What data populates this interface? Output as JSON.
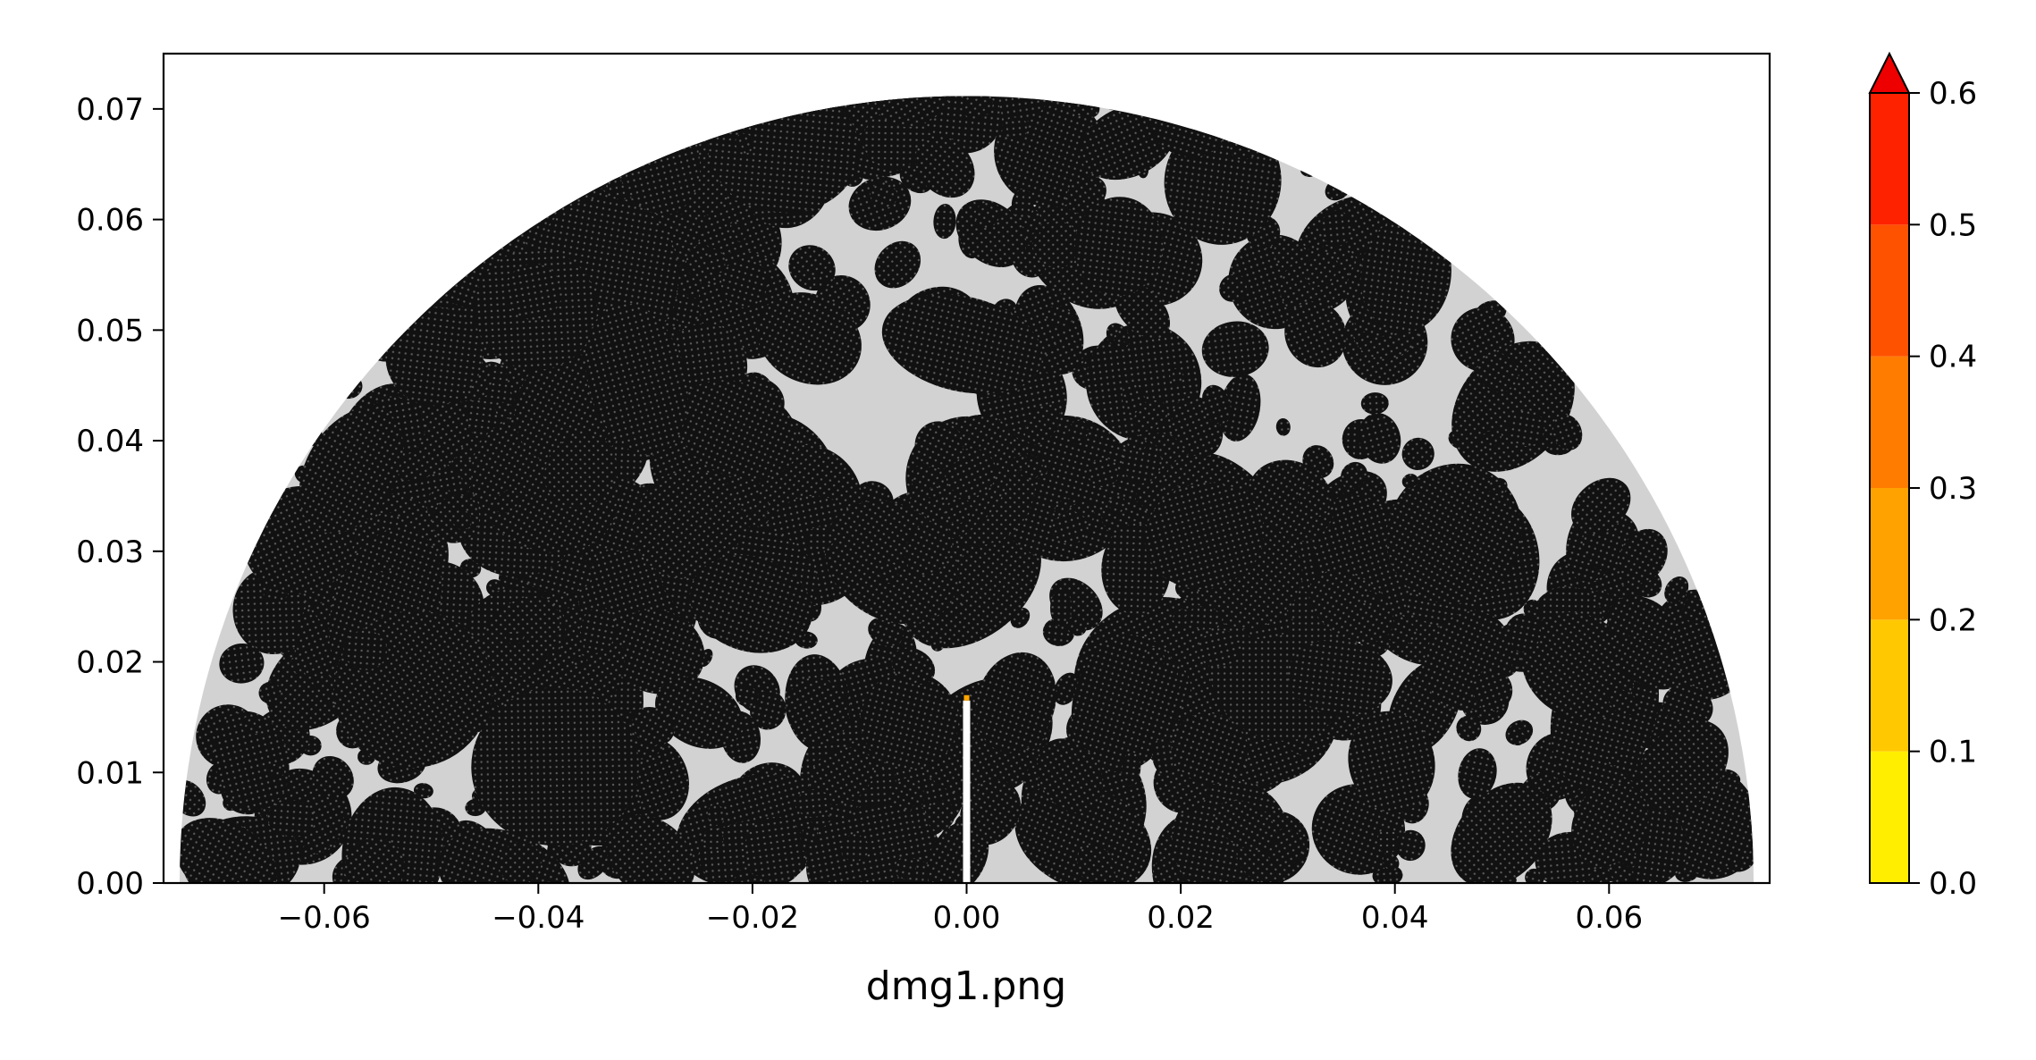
{
  "chart_data": {
    "type": "heatmap",
    "title": "",
    "xlabel": "dmg1.png",
    "ylabel": "",
    "xlim": [
      -0.075,
      0.075
    ],
    "ylim": [
      0.0,
      0.075
    ],
    "x_ticks": [
      -0.06,
      -0.04,
      -0.02,
      0.0,
      0.02,
      0.04,
      0.06
    ],
    "x_tick_labels": [
      "−0.06",
      "−0.04",
      "−0.02",
      "0.00",
      "0.02",
      "0.04",
      "0.06"
    ],
    "y_ticks": [
      0.0,
      0.01,
      0.02,
      0.03,
      0.04,
      0.05,
      0.06,
      0.07
    ],
    "y_tick_labels": [
      "0.00",
      "0.01",
      "0.02",
      "0.03",
      "0.04",
      "0.05",
      "0.06",
      "0.07"
    ],
    "domain": {
      "shape": "half-disk",
      "radius": 0.0735,
      "notch": {
        "x": 0.0,
        "y_top": 0.0165
      }
    },
    "colors": {
      "matrix": "#d2d2d2",
      "aggregate": "#111111",
      "notch_tip": "#ffa500",
      "background": "#ffffff"
    },
    "colorbar": {
      "ticks": [
        0.0,
        0.1,
        0.2,
        0.3,
        0.4,
        0.5,
        0.6
      ],
      "tick_labels": [
        "0.0",
        "0.1",
        "0.2",
        "0.3",
        "0.4",
        "0.5",
        "0.6"
      ],
      "extend": "max",
      "levels": [
        {
          "from": 0.0,
          "to": 0.1,
          "color": "#ffee00"
        },
        {
          "from": 0.1,
          "to": 0.2,
          "color": "#ffc800"
        },
        {
          "from": 0.2,
          "to": 0.3,
          "color": "#ffa200"
        },
        {
          "from": 0.3,
          "to": 0.4,
          "color": "#ff7c00"
        },
        {
          "from": 0.4,
          "to": 0.5,
          "color": "#ff5200"
        },
        {
          "from": 0.5,
          "to": 0.6,
          "color": "#ff2200"
        }
      ],
      "extend_color": "#ee0000"
    }
  }
}
